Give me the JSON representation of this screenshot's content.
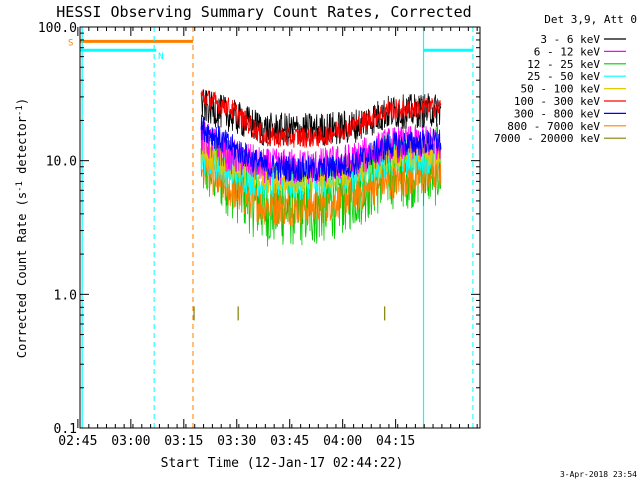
{
  "chart_data": {
    "type": "line",
    "title": "HESSI Observing Summary Count Rates, Corrected",
    "xlabel": "Start Time (12-Jan-17 02:44:22)",
    "ylabel_main": "Corrected Count Rate (s",
    "ylabel_sup1": "-1",
    "ylabel_mid": " detector",
    "ylabel_sup2": "-1",
    "ylabel_end": ")",
    "yscale": "log",
    "ylim": [
      0.1,
      100.0
    ],
    "xlim_minutes": [
      2.7,
      116.0
    ],
    "x_tick_labels": [
      "02:45",
      "03:00",
      "03:15",
      "03:30",
      "03:45",
      "04:00",
      "04:15"
    ],
    "x_tick_minutes": [
      15,
      30,
      45,
      60,
      75,
      90
    ],
    "x_tick_offsets": [
      0.6,
      15.6,
      30.6,
      45.6,
      60.6,
      75.6,
      90.6
    ],
    "y_tick_labels": [
      "0.1",
      "1.0",
      "10.0",
      "100.0"
    ],
    "y_tick_values": [
      0.1,
      1.0,
      10.0,
      100.0
    ],
    "legend_header": "Det 3,9, Att 0",
    "legend_placement": "right, outside plot",
    "timestamp": "3-Apr-2018 23:54",
    "flag_labels": {
      "saa": "S",
      "night": "N"
    },
    "flags": {
      "saa_orange": {
        "color": "#ff8000",
        "value": 78,
        "x_start": 2.7,
        "x_end": 34.7
      },
      "night_cyan": [
        {
          "color": "#00ffff",
          "value": 67,
          "x_start": 2.7,
          "x_end": 24.3
        },
        {
          "color": "#00ffff",
          "value": 67,
          "x_start": 100.0,
          "x_end": 114.0
        }
      ],
      "dashed_cyan_x": [
        23.7,
        114.0
      ],
      "solid_cyan_x": [
        3.3,
        100.0
      ],
      "dashed_orange_x": [
        34.7
      ]
    },
    "series": [
      {
        "name": "3 - 6 keV",
        "color": "#000000",
        "profile": [
          {
            "x": 37,
            "y": 26
          },
          {
            "x": 45,
            "y": 22
          },
          {
            "x": 55,
            "y": 17
          },
          {
            "x": 70,
            "y": 17
          },
          {
            "x": 80,
            "y": 18
          },
          {
            "x": 90,
            "y": 23
          },
          {
            "x": 105,
            "y": 24
          }
        ],
        "spread": 0.13
      },
      {
        "name": "6 - 12 keV",
        "color": "#ff00ff",
        "profile": [
          {
            "x": 37,
            "y": 15
          },
          {
            "x": 45,
            "y": 11
          },
          {
            "x": 55,
            "y": 9
          },
          {
            "x": 70,
            "y": 9
          },
          {
            "x": 80,
            "y": 10
          },
          {
            "x": 90,
            "y": 13
          },
          {
            "x": 105,
            "y": 14
          }
        ],
        "spread": 0.14
      },
      {
        "name": "12 - 25 keV",
        "color": "#00cc00",
        "profile": [
          {
            "x": 37,
            "y": 10
          },
          {
            "x": 45,
            "y": 7.5
          },
          {
            "x": 55,
            "y": 4.5
          },
          {
            "x": 70,
            "y": 4.5
          },
          {
            "x": 80,
            "y": 6
          },
          {
            "x": 90,
            "y": 8.5
          },
          {
            "x": 105,
            "y": 9
          }
        ],
        "spread": 0.3
      },
      {
        "name": "25 - 50 keV",
        "color": "#00ffff",
        "profile": [
          {
            "x": 37,
            "y": 11
          },
          {
            "x": 45,
            "y": 8.5
          },
          {
            "x": 55,
            "y": 7
          },
          {
            "x": 70,
            "y": 7
          },
          {
            "x": 80,
            "y": 8
          },
          {
            "x": 90,
            "y": 10.5
          },
          {
            "x": 105,
            "y": 11
          }
        ],
        "spread": 0.14
      },
      {
        "name": "50 - 100 keV",
        "color": "#e8c800",
        "profile": [
          {
            "x": 37,
            "y": 12
          },
          {
            "x": 45,
            "y": 9.5
          },
          {
            "x": 55,
            "y": 7.5
          },
          {
            "x": 70,
            "y": 7.5
          },
          {
            "x": 80,
            "y": 8.5
          },
          {
            "x": 90,
            "y": 11
          },
          {
            "x": 105,
            "y": 12
          }
        ],
        "spread": 0.12
      },
      {
        "name": "100 - 300 keV",
        "color": "#ff0000",
        "profile": [
          {
            "x": 37,
            "y": 30
          },
          {
            "x": 45,
            "y": 25
          },
          {
            "x": 55,
            "y": 15
          },
          {
            "x": 70,
            "y": 15
          },
          {
            "x": 80,
            "y": 18
          },
          {
            "x": 90,
            "y": 24
          },
          {
            "x": 105,
            "y": 25
          }
        ],
        "spread": 0.08
      },
      {
        "name": "300 - 800 keV",
        "color": "#0000ff",
        "profile": [
          {
            "x": 37,
            "y": 18
          },
          {
            "x": 45,
            "y": 13
          },
          {
            "x": 55,
            "y": 9
          },
          {
            "x": 70,
            "y": 8.5
          },
          {
            "x": 80,
            "y": 9.5
          },
          {
            "x": 90,
            "y": 13
          },
          {
            "x": 105,
            "y": 14
          }
        ],
        "spread": 0.1
      },
      {
        "name": "800 - 7000 keV",
        "color": "#ff8000",
        "profile": [
          {
            "x": 37,
            "y": 9
          },
          {
            "x": 45,
            "y": 6
          },
          {
            "x": 55,
            "y": 4.5
          },
          {
            "x": 70,
            "y": 4.5
          },
          {
            "x": 80,
            "y": 5.5
          },
          {
            "x": 90,
            "y": 7
          },
          {
            "x": 105,
            "y": 8
          }
        ],
        "spread": 0.14
      },
      {
        "name": "7000 - 20000 keV",
        "color": "#808000",
        "points": [
          {
            "x": 35.0,
            "y": 0.72
          },
          {
            "x": 47.5,
            "y": 0.72
          },
          {
            "x": 89.0,
            "y": 0.72
          }
        ],
        "spread": 0.0
      }
    ]
  }
}
